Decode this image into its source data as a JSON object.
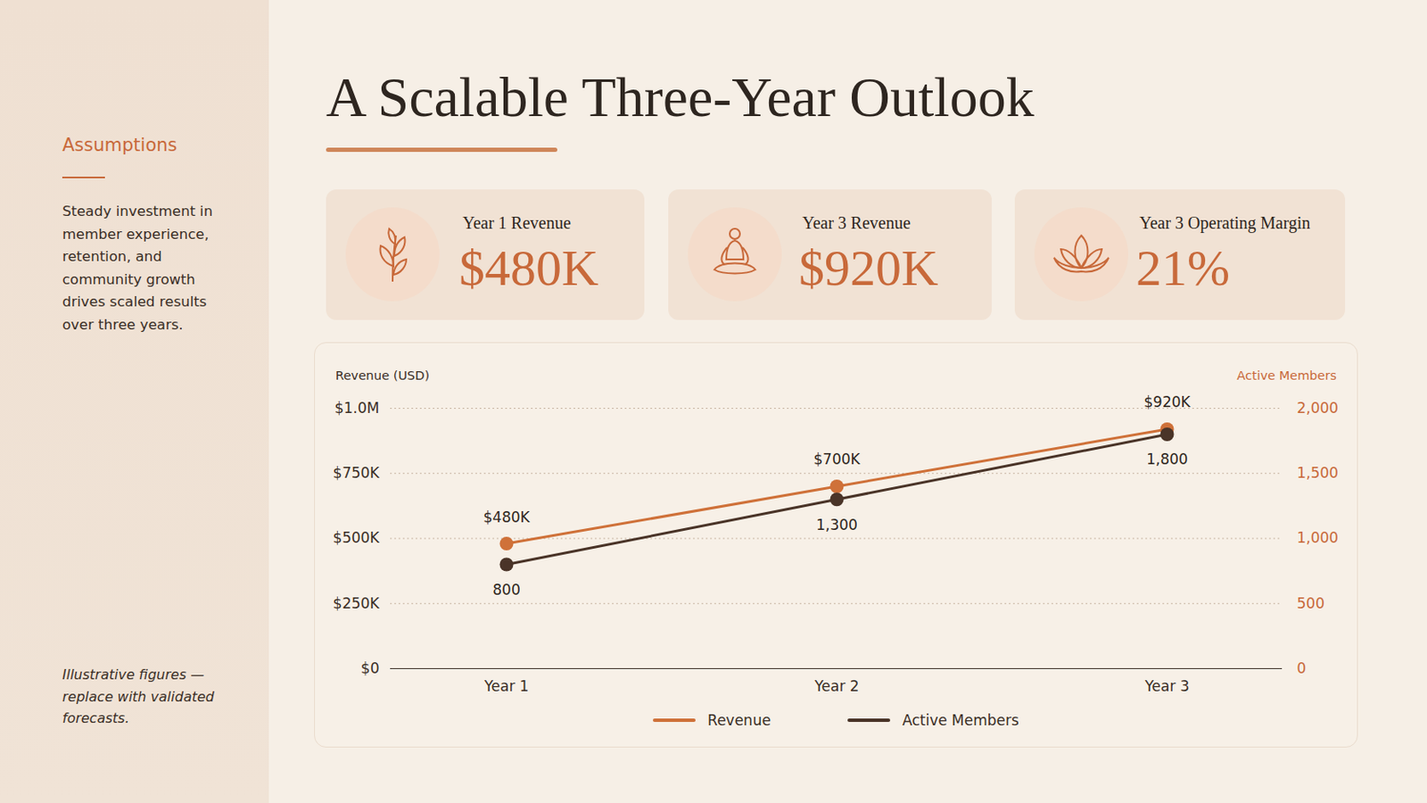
{
  "sidebar": {
    "heading": "Assumptions",
    "text": "Steady investment in member experience, retention, and community growth drives scaled results over three years.",
    "note": "Illustrative figures — replace with validated forecasts."
  },
  "kpis": [
    {
      "label": "Year 1 Revenue",
      "value": "$480K"
    },
    {
      "label": "Year 3 Revenue",
      "value": "$920K"
    },
    {
      "label": "Year 3 Operating Margin",
      "value": "21%"
    }
  ],
  "chart_data": {
    "type": "line",
    "title": "A Scalable Three-Year Outlook",
    "categories": [
      "Year 1",
      "Year 2",
      "Year 3"
    ],
    "ylabel": "Revenue (USD)",
    "y2label": "Active Members",
    "ylim": [
      0,
      1000000
    ],
    "yticks": [
      {
        "value": 0,
        "label": "$0"
      },
      {
        "value": 250000,
        "label": "$250K"
      },
      {
        "value": 500000,
        "label": "$500K"
      },
      {
        "value": 750000,
        "label": "$750K"
      },
      {
        "value": 1000000,
        "label": "$1.0M"
      }
    ],
    "y2lim": [
      0,
      2000
    ],
    "y2ticks": [
      0,
      500,
      {
        "value": 1000,
        "label": "1,000"
      },
      {
        "value": 1500,
        "label": "1,500"
      },
      {
        "value": 2000,
        "label": "2,000"
      }
    ],
    "grid": true,
    "data_labels": true,
    "legend": "bottom",
    "series": [
      {
        "name": "Revenue",
        "color": "#cf7139",
        "marker": "circle",
        "values": [
          480000,
          700000,
          920000
        ],
        "value_labels": [
          "$480K",
          "$700K",
          "$920K"
        ]
      },
      {
        "name": "Active Members",
        "color": "#4a3428",
        "marker": "circle",
        "axis": "y2",
        "values": [
          800,
          1300,
          1800
        ],
        "value_labels": [
          "800",
          "1,300",
          "1,800"
        ]
      }
    ]
  }
}
